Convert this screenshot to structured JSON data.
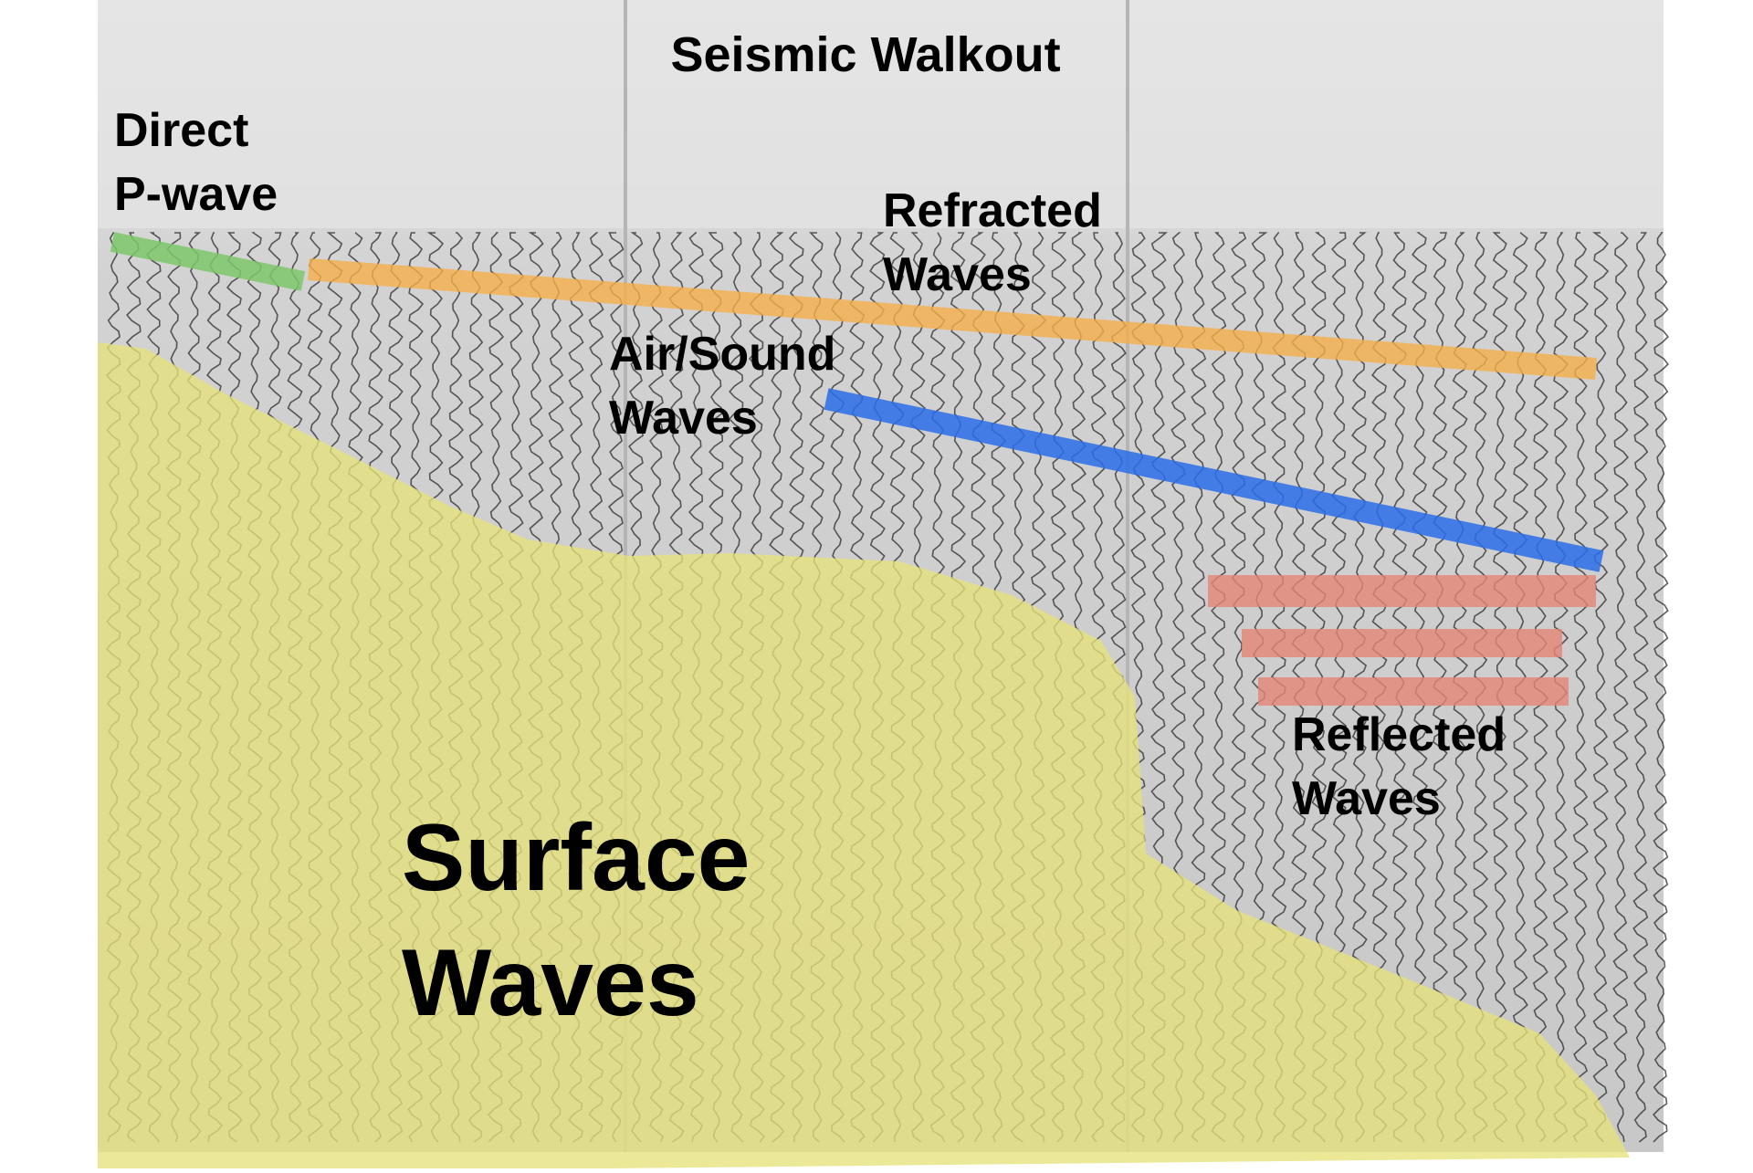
{
  "title": "Seismic Walkout",
  "labels": [
    {
      "lines": [
        "Direct",
        "P-wave"
      ]
    },
    {
      "lines": [
        "Refracted",
        "Waves"
      ]
    },
    {
      "lines": [
        "Air/Sound",
        "Waves"
      ]
    },
    {
      "lines": [
        "Reflected",
        "Waves"
      ]
    },
    {
      "lines": [
        "Surface",
        "Waves"
      ]
    }
  ]
}
